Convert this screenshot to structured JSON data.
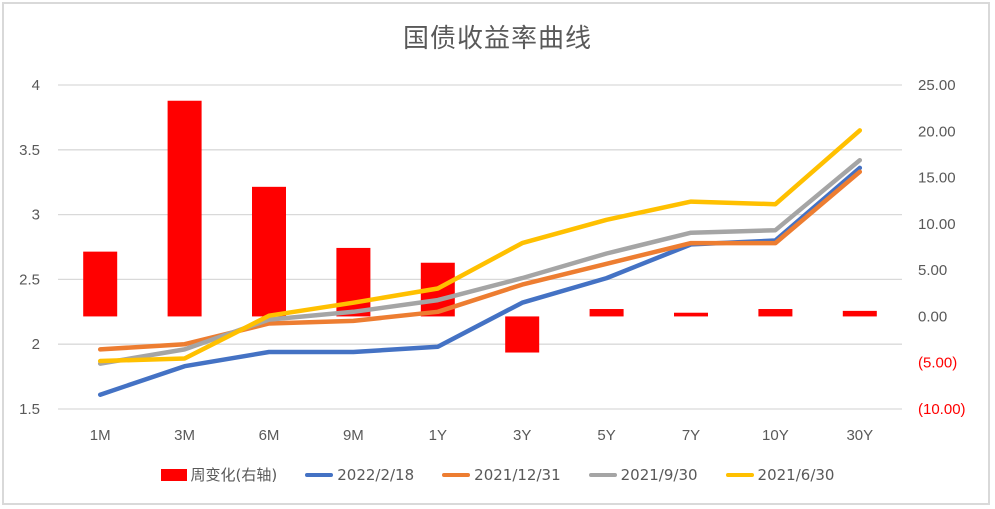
{
  "chart_data": {
    "type": "bar+line",
    "title": "国债收益率曲线",
    "categories": [
      "1M",
      "3M",
      "6M",
      "9M",
      "1Y",
      "3Y",
      "5Y",
      "7Y",
      "10Y",
      "30Y"
    ],
    "left_axis": {
      "ticks": [
        "4",
        "3.5",
        "3",
        "2.5",
        "2",
        "1.5"
      ],
      "ylim": [
        1.5,
        4
      ]
    },
    "right_axis": {
      "ticks": [
        "25.00",
        "20.00",
        "15.00",
        "10.00",
        "5.00",
        "0.00",
        "(5.00)",
        "(10.00)"
      ],
      "ylim": [
        -10,
        25
      ],
      "negative_color": "#ff0000"
    },
    "series": [
      {
        "name": "周变化(右轴)",
        "type": "bar",
        "axis": "right",
        "color": "#ff0000",
        "values": [
          7.0,
          23.3,
          14.0,
          7.4,
          5.8,
          -3.9,
          0.8,
          0.4,
          0.8,
          0.6
        ]
      },
      {
        "name": "2022/2/18",
        "type": "line",
        "axis": "left",
        "color": "#4472c4",
        "values": [
          1.61,
          1.83,
          1.94,
          1.94,
          1.98,
          2.32,
          2.51,
          2.77,
          2.8,
          3.36
        ]
      },
      {
        "name": "2021/12/31",
        "type": "line",
        "axis": "left",
        "color": "#ed7d31",
        "values": [
          1.96,
          2.0,
          2.16,
          2.18,
          2.25,
          2.46,
          2.62,
          2.78,
          2.78,
          3.33
        ]
      },
      {
        "name": "2021/9/30",
        "type": "line",
        "axis": "left",
        "color": "#a5a5a5",
        "values": [
          1.85,
          1.96,
          2.19,
          2.25,
          2.34,
          2.51,
          2.7,
          2.86,
          2.88,
          3.42
        ]
      },
      {
        "name": "2021/6/30",
        "type": "line",
        "axis": "left",
        "color": "#ffc000",
        "values": [
          1.87,
          1.89,
          2.22,
          2.32,
          2.43,
          2.78,
          2.96,
          3.1,
          3.08,
          3.65
        ]
      }
    ],
    "grid": true,
    "legend_position": "bottom"
  }
}
